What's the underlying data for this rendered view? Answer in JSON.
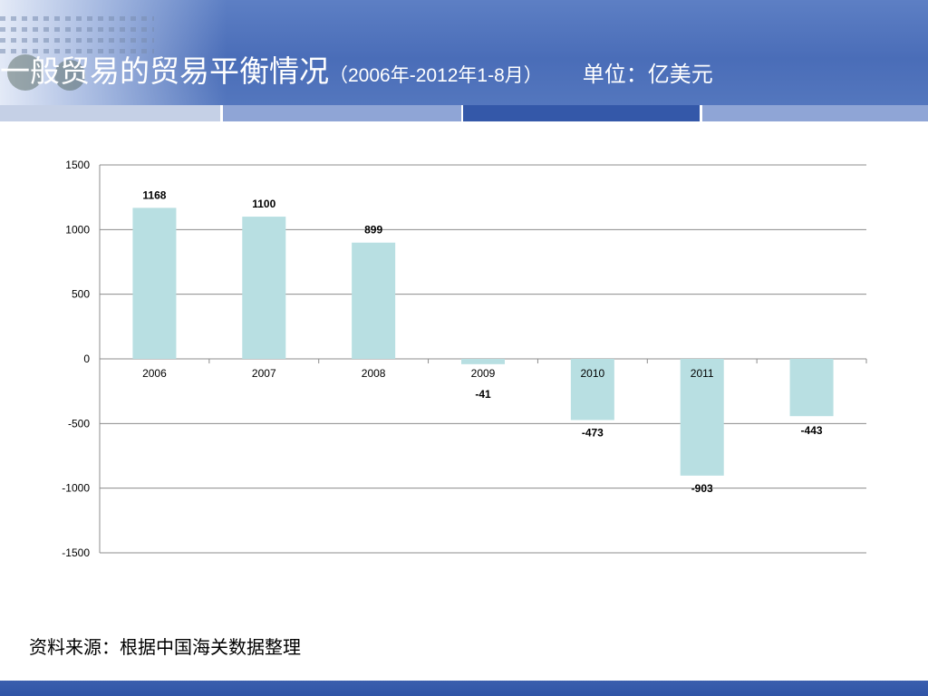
{
  "slide": {
    "title_main": "一般贸易的贸易平衡情况",
    "title_period": "（2006年-2012年1-8月）",
    "title_unit": "单位：亿美元",
    "source": "资料来源：根据中国海关数据整理"
  },
  "colors": {
    "bar": "#b8dfe2",
    "header": "#4a6db8",
    "stripe_light": "#c5d0e6",
    "stripe_mid": "#8fa5d6",
    "stripe_dark": "#3458a9",
    "footer": "#2f54a6"
  },
  "chart_data": {
    "type": "bar",
    "categories": [
      "2006",
      "2007",
      "2008",
      "2009",
      "2010",
      "2011",
      ""
    ],
    "values": [
      1168,
      1100,
      899,
      -41,
      -473,
      -903,
      -443
    ],
    "data_labels": [
      "1168",
      "1100",
      "899",
      "-41",
      "-473",
      "-903",
      "-443"
    ],
    "yticks": [
      1500,
      1000,
      500,
      0,
      -500,
      -1000,
      -1500
    ],
    "ylim": [
      -1500,
      1500
    ],
    "grid": true,
    "title": "",
    "xlabel": "",
    "ylabel": ""
  }
}
